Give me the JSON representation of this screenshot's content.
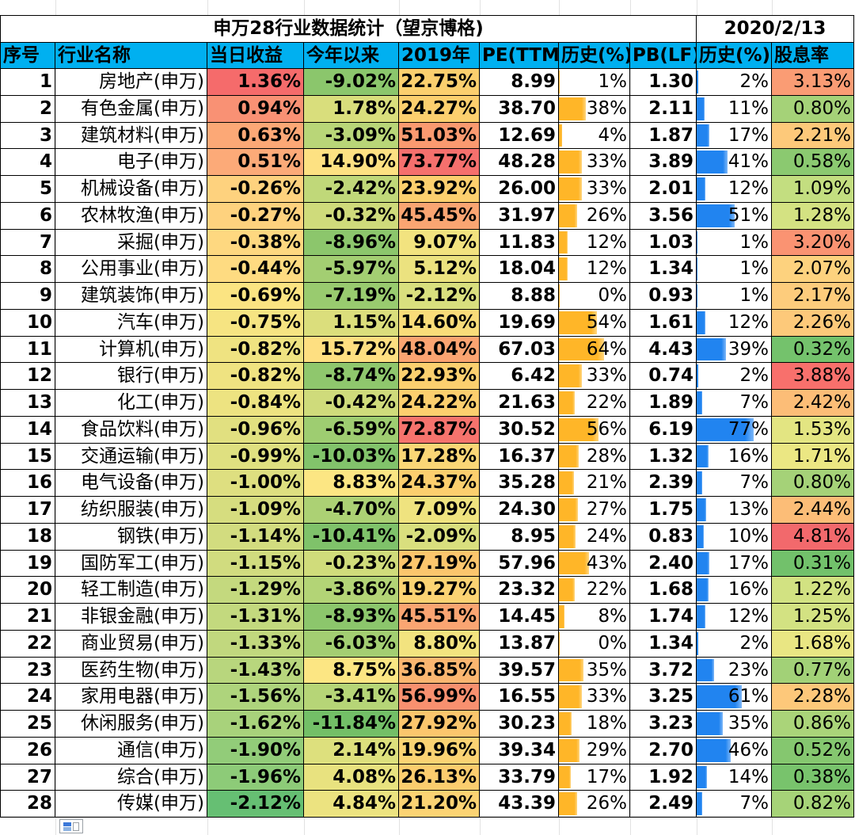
{
  "title": "申万28行业数据统计（望京博格)",
  "date": "2020/2/13",
  "headers": [
    "序号",
    "行业名称",
    "当日收益",
    "今年以来",
    "2019年",
    "PE(TTM",
    "历史(%)",
    "PB(LF)",
    "历史(%)",
    "股息率"
  ],
  "rows": [
    {
      "n": "1",
      "name": "房地产(申万)",
      "day": "1.36%",
      "ytd": "-9.02%",
      "y2019": "22.75%",
      "pe": "8.99",
      "pe_hist": "1%",
      "pb": "1.30",
      "pb_hist": "2%",
      "div": "3.13%",
      "c_day": "#f56b6b",
      "c_ytd": "#8bc66c",
      "c_2019": "#fbcf6e",
      "c_div": "#fa9c74"
    },
    {
      "n": "2",
      "name": "有色金属(申万)",
      "day": "0.94%",
      "ytd": "1.78%",
      "y2019": "24.27%",
      "pe": "38.70",
      "pe_hist": "38%",
      "pb": "2.11",
      "pb_hist": "11%",
      "div": "0.80%",
      "c_day": "#f99174",
      "c_ytd": "#d9de7c",
      "c_2019": "#fccf6e",
      "c_div": "#a5d278"
    },
    {
      "n": "3",
      "name": "建筑材料(申万)",
      "day": "0.63%",
      "ytd": "-3.09%",
      "y2019": "51.03%",
      "pe": "12.69",
      "pe_hist": "4%",
      "pb": "1.87",
      "pb_hist": "17%",
      "div": "2.21%",
      "c_day": "#fca876",
      "c_ytd": "#b9d678",
      "c_2019": "#fa9a70",
      "c_div": "#fdc97a"
    },
    {
      "n": "4",
      "name": "电子(申万)",
      "day": "0.51%",
      "ytd": "14.90%",
      "y2019": "73.77%",
      "pe": "48.28",
      "pe_hist": "33%",
      "pb": "3.89",
      "pb_hist": "41%",
      "div": "0.58%",
      "c_day": "#fcaa78",
      "c_ytd": "#fde182",
      "c_2019": "#f5706d",
      "c_div": "#8bc970"
    },
    {
      "n": "5",
      "name": "机械设备(申万)",
      "day": "-0.26%",
      "ytd": "-2.42%",
      "y2019": "23.92%",
      "pe": "26.00",
      "pe_hist": "33%",
      "pb": "2.01",
      "pb_hist": "12%",
      "div": "1.09%",
      "c_day": "#fed27e",
      "c_ytd": "#c0d879",
      "c_2019": "#fccf6e",
      "c_div": "#c3de80"
    },
    {
      "n": "6",
      "name": "农林牧渔(申万)",
      "day": "-0.27%",
      "ytd": "-0.32%",
      "y2019": "45.45%",
      "pe": "31.97",
      "pe_hist": "26%",
      "pb": "3.56",
      "pb_hist": "51%",
      "div": "1.28%",
      "c_day": "#fed27e",
      "c_ytd": "#cfdb7b",
      "c_2019": "#faa572",
      "c_div": "#d4e282"
    },
    {
      "n": "7",
      "name": "采掘(申万)",
      "day": "-0.38%",
      "ytd": "-8.96%",
      "y2019": "9.07%",
      "pe": "11.83",
      "pe_hist": "12%",
      "pb": "1.03",
      "pb_hist": "1%",
      "div": "3.20%",
      "c_day": "#fed880",
      "c_ytd": "#8cc66c",
      "c_2019": "#f2e37f",
      "c_div": "#fa9372"
    },
    {
      "n": "8",
      "name": "公用事业(申万)",
      "day": "-0.44%",
      "ytd": "-5.97%",
      "y2019": "5.12%",
      "pe": "18.04",
      "pe_hist": "12%",
      "pb": "1.34",
      "pb_hist": "1%",
      "div": "2.07%",
      "c_day": "#fedb81",
      "c_ytd": "#a3ce72",
      "c_2019": "#ebe27f",
      "c_div": "#fdd27e"
    },
    {
      "n": "9",
      "name": "建筑装饰(申万)",
      "day": "-0.69%",
      "ytd": "-7.19%",
      "y2019": "-2.12%",
      "pe": "8.88",
      "pe_hist": "0%",
      "pb": "0.93",
      "pb_hist": "1%",
      "div": "2.17%",
      "c_day": "#fbe482",
      "c_ytd": "#99cb6f",
      "c_2019": "#d9df7e",
      "c_div": "#fdcc7c"
    },
    {
      "n": "10",
      "name": "汽车(申万)",
      "day": "-0.75%",
      "ytd": "1.15%",
      "y2019": "14.60%",
      "pe": "19.69",
      "pe_hist": "54%",
      "pb": "1.61",
      "pb_hist": "12%",
      "div": "2.26%",
      "c_day": "#f6e482",
      "c_ytd": "#dbde7c",
      "c_2019": "#f9dc79",
      "c_div": "#fdc97a"
    },
    {
      "n": "11",
      "name": "计算机(申万)",
      "day": "-0.82%",
      "ytd": "15.72%",
      "y2019": "48.04%",
      "pe": "67.03",
      "pe_hist": "64%",
      "pb": "4.43",
      "pb_hist": "39%",
      "div": "0.32%",
      "c_day": "#efe381",
      "c_ytd": "#fedf81",
      "c_2019": "#fba471",
      "c_div": "#74c26c"
    },
    {
      "n": "12",
      "name": "银行(申万)",
      "day": "-0.82%",
      "ytd": "-8.74%",
      "y2019": "22.93%",
      "pe": "6.42",
      "pe_hist": "33%",
      "pb": "0.74",
      "pb_hist": "2%",
      "div": "3.88%",
      "c_day": "#efe381",
      "c_ytd": "#8fc76d",
      "c_2019": "#fcd06f",
      "c_div": "#f8706c"
    },
    {
      "n": "13",
      "name": "化工(申万)",
      "day": "-0.84%",
      "ytd": "-0.42%",
      "y2019": "24.22%",
      "pe": "21.63",
      "pe_hist": "22%",
      "pb": "1.89",
      "pb_hist": "7%",
      "div": "2.42%",
      "c_day": "#ede381",
      "c_ytd": "#cfdb7b",
      "c_2019": "#fccf6e",
      "c_div": "#fcbd77"
    },
    {
      "n": "14",
      "name": "食品饮料(申万)",
      "day": "-0.96%",
      "ytd": "-6.59%",
      "y2019": "72.87%",
      "pe": "30.52",
      "pe_hist": "56%",
      "pb": "6.19",
      "pb_hist": "77%",
      "div": "1.53%",
      "c_day": "#e1e080",
      "c_ytd": "#9ecd71",
      "c_2019": "#f6736d",
      "c_div": "#e3e582"
    },
    {
      "n": "15",
      "name": "交通运输(申万)",
      "day": "-0.99%",
      "ytd": "-10.03%",
      "y2019": "17.28%",
      "pe": "16.37",
      "pe_hist": "28%",
      "pb": "1.32",
      "pb_hist": "16%",
      "div": "1.71%",
      "c_day": "#dfe080",
      "c_ytd": "#82c36b",
      "c_2019": "#fad676",
      "c_div": "#ebe783"
    },
    {
      "n": "16",
      "name": "电气设备(申万)",
      "day": "-1.00%",
      "ytd": "8.83%",
      "y2019": "24.37%",
      "pe": "35.28",
      "pe_hist": "21%",
      "pb": "2.39",
      "pb_hist": "7%",
      "div": "0.80%",
      "c_day": "#dedf80",
      "c_ytd": "#fce683",
      "c_2019": "#fccf6e",
      "c_div": "#a5d278"
    },
    {
      "n": "17",
      "name": "纺织服装(申万)",
      "day": "-1.09%",
      "ytd": "-4.70%",
      "y2019": "7.09%",
      "pe": "24.30",
      "pe_hist": "27%",
      "pb": "1.75",
      "pb_hist": "13%",
      "div": "2.44%",
      "c_day": "#d6dd7f",
      "c_ytd": "#acd174",
      "c_2019": "#efe37f",
      "c_div": "#fcbd77"
    },
    {
      "n": "18",
      "name": "钢铁(申万)",
      "day": "-1.14%",
      "ytd": "-10.41%",
      "y2019": "-2.09%",
      "pe": "8.95",
      "pe_hist": "24%",
      "pb": "0.83",
      "pb_hist": "10%",
      "div": "4.81%",
      "c_day": "#d2dc7f",
      "c_ytd": "#7fc26a",
      "c_2019": "#d9df7e",
      "c_div": "#f2696c"
    },
    {
      "n": "19",
      "name": "国防军工(申万)",
      "day": "-1.15%",
      "ytd": "-0.23%",
      "y2019": "27.19%",
      "pe": "57.96",
      "pe_hist": "43%",
      "pb": "2.40",
      "pb_hist": "17%",
      "div": "0.31%",
      "c_day": "#d1dc7f",
      "c_ytd": "#d0dc7b",
      "c_2019": "#fbc66d",
      "c_div": "#72c16b"
    },
    {
      "n": "20",
      "name": "轻工制造(申万)",
      "day": "-1.29%",
      "ytd": "-3.86%",
      "y2019": "19.27%",
      "pe": "23.32",
      "pe_hist": "22%",
      "pb": "1.68",
      "pb_hist": "16%",
      "div": "1.22%",
      "c_day": "#c4d97e",
      "c_ytd": "#b3d476",
      "c_2019": "#fbd373",
      "c_div": "#d2e282"
    },
    {
      "n": "21",
      "name": "非银金融(申万)",
      "day": "-1.31%",
      "ytd": "-8.93%",
      "y2019": "45.51%",
      "pe": "14.45",
      "pe_hist": "8%",
      "pb": "1.74",
      "pb_hist": "12%",
      "div": "1.25%",
      "c_day": "#c3d97e",
      "c_ytd": "#8cc66c",
      "c_2019": "#faa572",
      "c_div": "#d3e282"
    },
    {
      "n": "22",
      "name": "商业贸易(申万)",
      "day": "-1.33%",
      "ytd": "-6.03%",
      "y2019": "8.80%",
      "pe": "13.87",
      "pe_hist": "0%",
      "pb": "1.34",
      "pb_hist": "2%",
      "div": "1.68%",
      "c_day": "#c1d87e",
      "c_ytd": "#a3ce72",
      "c_2019": "#f2e37f",
      "c_div": "#e9e683"
    },
    {
      "n": "23",
      "name": "医药生物(申万)",
      "day": "-1.43%",
      "ytd": "8.75%",
      "y2019": "36.85%",
      "pe": "39.57",
      "pe_hist": "35%",
      "pb": "3.72",
      "pb_hist": "23%",
      "div": "0.77%",
      "c_day": "#b8d67d",
      "c_ytd": "#fce683",
      "c_2019": "#fbb670",
      "c_div": "#a2d177"
    },
    {
      "n": "24",
      "name": "家用电器(申万)",
      "day": "-1.56%",
      "ytd": "-3.41%",
      "y2019": "56.99%",
      "pe": "16.55",
      "pe_hist": "33%",
      "pb": "3.25",
      "pb_hist": "61%",
      "div": "2.28%",
      "c_day": "#aed47c",
      "c_ytd": "#b6d577",
      "c_2019": "#f8906f",
      "c_div": "#fdc87a"
    },
    {
      "n": "25",
      "name": "休闲服务(申万)",
      "day": "-1.62%",
      "ytd": "-11.84%",
      "y2019": "27.92%",
      "pe": "30.23",
      "pe_hist": "18%",
      "pb": "3.23",
      "pb_hist": "35%",
      "div": "0.86%",
      "c_day": "#a8d27b",
      "c_ytd": "#73bf67",
      "c_2019": "#fbc66d",
      "c_div": "#aad479"
    },
    {
      "n": "26",
      "name": "通信(申万)",
      "day": "-1.90%",
      "ytd": "2.14%",
      "y2019": "19.96%",
      "pe": "39.34",
      "pe_hist": "29%",
      "pb": "2.70",
      "pb_hist": "46%",
      "div": "0.52%",
      "c_day": "#92cc79",
      "c_ytd": "#dde07d",
      "c_2019": "#fbd373",
      "c_div": "#85c76f"
    },
    {
      "n": "27",
      "name": "综合(申万)",
      "day": "-1.96%",
      "ytd": "4.08%",
      "y2019": "26.13%",
      "pe": "33.79",
      "pe_hist": "17%",
      "pb": "1.92",
      "pb_hist": "14%",
      "div": "0.38%",
      "c_day": "#8dcb78",
      "c_ytd": "#e8e27f",
      "c_2019": "#fbcd6e",
      "c_div": "#78c36c"
    },
    {
      "n": "28",
      "name": "传媒(申万)",
      "day": "-2.12%",
      "ytd": "4.84%",
      "y2019": "21.20%",
      "pe": "43.39",
      "pe_hist": "26%",
      "pb": "2.49",
      "pb_hist": "7%",
      "div": "0.82%",
      "c_day": "#66bf73",
      "c_ytd": "#ece380",
      "c_2019": "#fbd373",
      "c_div": "#a6d378"
    }
  ],
  "colors": {
    "header_bg": "#00b0f0",
    "bar_pe": "#ffb628",
    "bar_pb": "#2184f0",
    "grid": "#e2e2e2"
  },
  "icons": {
    "paste_options": "paste-options-icon"
  }
}
